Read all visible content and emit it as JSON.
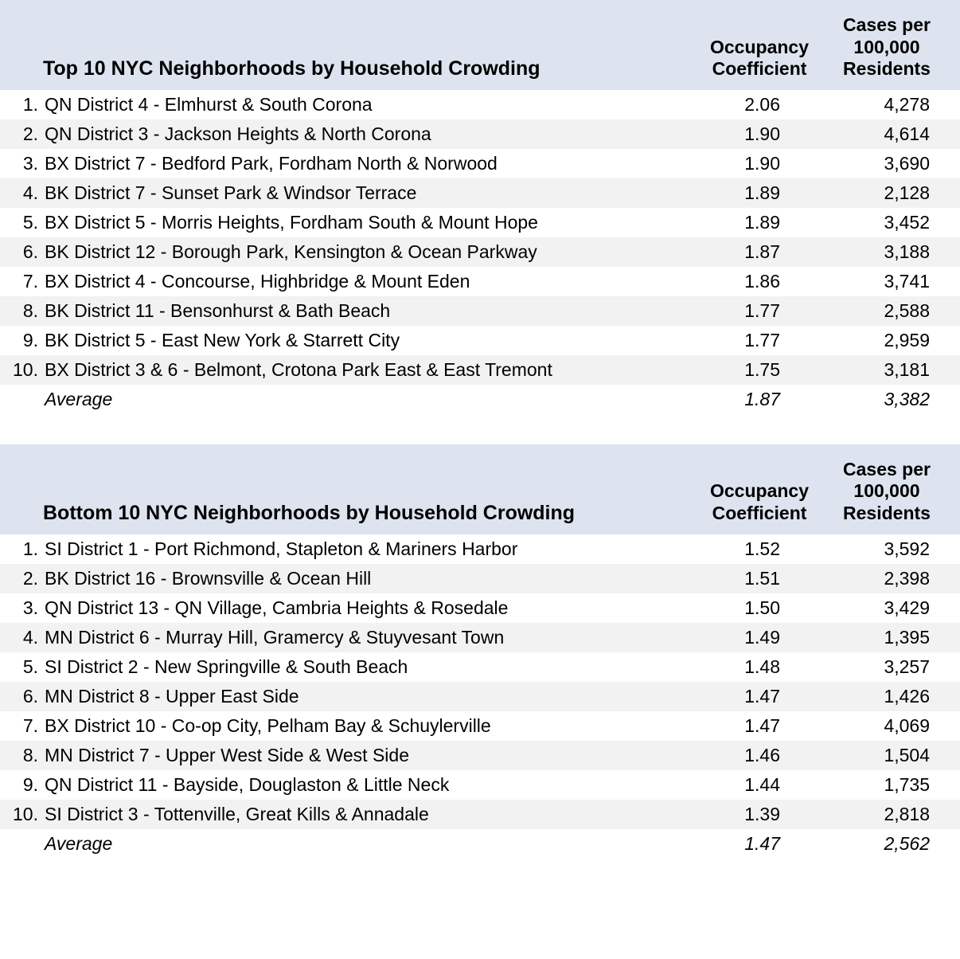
{
  "colors": {
    "header_bg": "#dde3ef",
    "row_odd_bg": "#ffffff",
    "row_even_bg": "#f2f2f2",
    "text": "#000000"
  },
  "typography": {
    "font_family": "Helvetica / Arial",
    "header_fontsize": 25,
    "body_fontsize": 23,
    "header_fontweight": "bold"
  },
  "columns": {
    "occupancy": "Occupancy Coefficient",
    "cases": "Cases per 100,000 Residents"
  },
  "tables": [
    {
      "title": "Top 10 NYC Neighborhoods by Household Crowding",
      "rows": [
        {
          "rank": "1.",
          "name": "QN District 4 - Elmhurst & South Corona",
          "occ": "2.06",
          "cases": "4,278"
        },
        {
          "rank": "2.",
          "name": "QN District 3 - Jackson Heights & North Corona",
          "occ": "1.90",
          "cases": "4,614"
        },
        {
          "rank": "3.",
          "name": "BX District 7 - Bedford Park, Fordham North & Norwood",
          "occ": "1.90",
          "cases": "3,690"
        },
        {
          "rank": "4.",
          "name": "BK District 7 - Sunset Park & Windsor Terrace",
          "occ": "1.89",
          "cases": "2,128"
        },
        {
          "rank": "5.",
          "name": "BX District 5 - Morris Heights, Fordham South & Mount Hope",
          "occ": "1.89",
          "cases": "3,452"
        },
        {
          "rank": "6.",
          "name": "BK District 12 - Borough Park, Kensington & Ocean Parkway",
          "occ": "1.87",
          "cases": "3,188"
        },
        {
          "rank": "7.",
          "name": "BX District 4 - Concourse, Highbridge & Mount Eden",
          "occ": "1.86",
          "cases": "3,741"
        },
        {
          "rank": "8.",
          "name": "BK District 11 - Bensonhurst & Bath Beach",
          "occ": "1.77",
          "cases": "2,588"
        },
        {
          "rank": "9.",
          "name": "BK District 5 - East New York & Starrett City",
          "occ": "1.77",
          "cases": "2,959"
        },
        {
          "rank": "10.",
          "name": "BX District 3 & 6 - Belmont, Crotona Park East & East Tremont",
          "occ": "1.75",
          "cases": "3,181"
        }
      ],
      "average": {
        "label": "Average",
        "occ": "1.87",
        "cases": "3,382"
      }
    },
    {
      "title": "Bottom 10 NYC Neighborhoods by Household Crowding",
      "rows": [
        {
          "rank": "1.",
          "name": "SI District 1 - Port Richmond, Stapleton & Mariners Harbor",
          "occ": "1.52",
          "cases": "3,592"
        },
        {
          "rank": "2.",
          "name": "BK District 16 - Brownsville & Ocean Hill",
          "occ": "1.51",
          "cases": "2,398"
        },
        {
          "rank": "3.",
          "name": "QN District 13 - QN Village, Cambria Heights & Rosedale",
          "occ": "1.50",
          "cases": "3,429"
        },
        {
          "rank": "4.",
          "name": "MN District 6 - Murray Hill, Gramercy & Stuyvesant Town",
          "occ": "1.49",
          "cases": "1,395"
        },
        {
          "rank": "5.",
          "name": "SI District 2 - New Springville & South Beach",
          "occ": "1.48",
          "cases": "3,257"
        },
        {
          "rank": "6.",
          "name": "MN District 8 - Upper East Side",
          "occ": "1.47",
          "cases": "1,426"
        },
        {
          "rank": "7.",
          "name": "BX District 10 - Co-op City, Pelham Bay & Schuylerville",
          "occ": "1.47",
          "cases": "4,069"
        },
        {
          "rank": "8.",
          "name": "MN District 7 - Upper West Side & West Side",
          "occ": "1.46",
          "cases": "1,504"
        },
        {
          "rank": "9.",
          "name": "QN District 11 - Bayside, Douglaston & Little Neck",
          "occ": "1.44",
          "cases": "1,735"
        },
        {
          "rank": "10.",
          "name": "SI District 3 - Tottenville, Great Kills & Annadale",
          "occ": "1.39",
          "cases": "2,818"
        }
      ],
      "average": {
        "label": "Average",
        "occ": "1.47",
        "cases": "2,562"
      }
    }
  ]
}
